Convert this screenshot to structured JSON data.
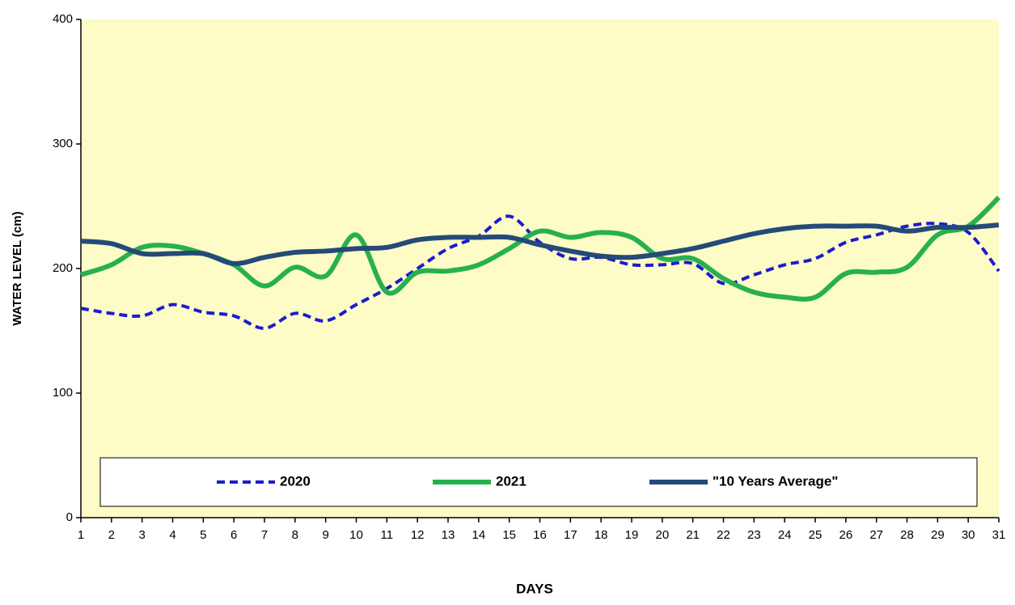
{
  "chart_data": {
    "type": "line",
    "xlabel": "DAYS",
    "ylabel": "WATER LEVEL (cm)",
    "x": [
      1,
      2,
      3,
      4,
      5,
      6,
      7,
      8,
      9,
      10,
      11,
      12,
      13,
      14,
      15,
      16,
      17,
      18,
      19,
      20,
      21,
      22,
      23,
      24,
      25,
      26,
      27,
      28,
      29,
      30,
      31
    ],
    "xlim": [
      1,
      31
    ],
    "xticks": [
      1,
      2,
      3,
      4,
      5,
      6,
      7,
      8,
      9,
      10,
      11,
      12,
      13,
      14,
      15,
      16,
      17,
      18,
      19,
      20,
      21,
      22,
      23,
      24,
      25,
      26,
      27,
      28,
      29,
      30,
      31
    ],
    "ylim": [
      0,
      400
    ],
    "yticks": [
      0,
      100,
      200,
      300,
      400
    ],
    "grid": false,
    "legend": "bottom",
    "background": "#fdfbc6",
    "smooth": true,
    "series": [
      {
        "name": "2020",
        "color": "#1c1ccf",
        "dash": true,
        "values": [
          168,
          164,
          162,
          171,
          165,
          162,
          152,
          164,
          158,
          171,
          184,
          200,
          216,
          226,
          242,
          221,
          208,
          209,
          203,
          203,
          204,
          188,
          195,
          203,
          208,
          221,
          227,
          234,
          236,
          229,
          198
        ]
      },
      {
        "name": "2021",
        "color": "#27b04f",
        "dash": false,
        "values": [
          195,
          203,
          217,
          218,
          212,
          203,
          186,
          201,
          194,
          227,
          181,
          197,
          198,
          203,
          216,
          230,
          225,
          229,
          225,
          208,
          208,
          192,
          181,
          177,
          177,
          196,
          197,
          201,
          227,
          234,
          257
        ]
      },
      {
        "name": "\"10 Years Average\"",
        "color": "#244a78",
        "dash": false,
        "values": [
          222,
          220,
          212,
          212,
          212,
          204,
          209,
          213,
          214,
          216,
          217,
          223,
          225,
          225,
          225,
          219,
          214,
          210,
          209,
          212,
          216,
          222,
          228,
          232,
          234,
          234,
          234,
          230,
          233,
          233,
          235
        ]
      }
    ]
  }
}
